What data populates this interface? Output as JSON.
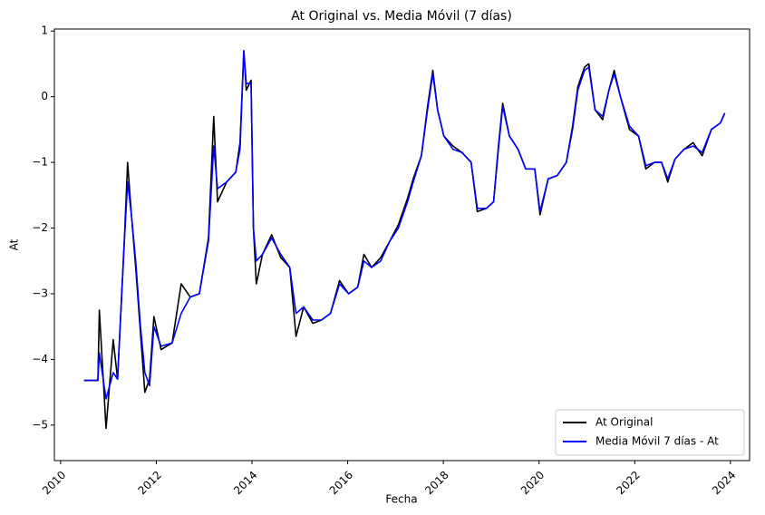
{
  "chart_data": {
    "type": "line",
    "title": "At Original vs. Media Móvil (7 días)",
    "xlabel": "Fecha",
    "ylabel": "At",
    "x": [
      2010.49,
      2010.78,
      2010.81,
      2010.95,
      2011.1,
      2011.19,
      2011.34,
      2011.4,
      2011.48,
      2011.57,
      2011.67,
      2011.76,
      2011.86,
      2011.95,
      2012.1,
      2012.33,
      2012.52,
      2012.71,
      2012.9,
      2013.09,
      2013.2,
      2013.28,
      2013.47,
      2013.66,
      2013.75,
      2013.83,
      2013.88,
      2013.98,
      2014.03,
      2014.09,
      2014.22,
      2014.41,
      2014.6,
      2014.79,
      2014.92,
      2015.08,
      2015.27,
      2015.45,
      2015.64,
      2015.83,
      2016.02,
      2016.21,
      2016.34,
      2016.5,
      2016.69,
      2016.88,
      2017.06,
      2017.25,
      2017.37,
      2017.54,
      2017.67,
      2017.78,
      2017.88,
      2018.01,
      2018.2,
      2018.39,
      2018.58,
      2018.71,
      2018.9,
      2019.05,
      2019.15,
      2019.24,
      2019.38,
      2019.56,
      2019.72,
      2019.91,
      2020.02,
      2020.19,
      2020.38,
      2020.57,
      2020.7,
      2020.81,
      2020.95,
      2021.04,
      2021.17,
      2021.33,
      2021.46,
      2021.57,
      2021.7,
      2021.89,
      2022.08,
      2022.23,
      2022.41,
      2022.56,
      2022.69,
      2022.84,
      2023.03,
      2023.22,
      2023.41,
      2023.6,
      2023.79,
      2023.88
    ],
    "series": [
      {
        "name": "At Original",
        "color": "#000000",
        "values": [
          -4.32,
          -4.32,
          -3.25,
          -5.05,
          -3.7,
          -4.3,
          -2.05,
          -1.0,
          -1.8,
          -2.6,
          -3.6,
          -4.5,
          -4.3,
          -3.35,
          -3.85,
          -3.75,
          -2.85,
          -3.05,
          -3.0,
          -2.15,
          -0.3,
          -1.6,
          -1.3,
          -1.15,
          -0.7,
          0.7,
          0.1,
          0.25,
          -2.0,
          -2.85,
          -2.4,
          -2.1,
          -2.45,
          -2.6,
          -3.65,
          -3.2,
          -3.45,
          -3.4,
          -3.3,
          -2.8,
          -3.0,
          -2.9,
          -2.4,
          -2.6,
          -2.45,
          -2.2,
          -1.95,
          -1.55,
          -1.25,
          -0.9,
          -0.15,
          0.4,
          -0.2,
          -0.6,
          -0.75,
          -0.85,
          -1.0,
          -1.75,
          -1.7,
          -1.6,
          -0.75,
          -0.1,
          -0.6,
          -0.8,
          -1.1,
          -1.1,
          -1.8,
          -1.25,
          -1.2,
          -1.0,
          -0.45,
          0.15,
          0.45,
          0.5,
          -0.2,
          -0.35,
          0.1,
          0.4,
          0.0,
          -0.5,
          -0.6,
          -1.1,
          -1.0,
          -1.0,
          -1.3,
          -0.95,
          -0.8,
          -0.7,
          -0.9,
          -0.5,
          -0.4,
          -0.25
        ]
      },
      {
        "name": "Media Móvil 7 días - At",
        "color": "#0000ff",
        "values": [
          -4.32,
          -4.32,
          -3.9,
          -4.6,
          -4.2,
          -4.3,
          -2.1,
          -1.3,
          -1.8,
          -2.5,
          -3.5,
          -4.2,
          -4.4,
          -3.5,
          -3.8,
          -3.75,
          -3.3,
          -3.05,
          -3.0,
          -2.2,
          -0.75,
          -1.4,
          -1.3,
          -1.15,
          -0.8,
          0.7,
          0.2,
          0.2,
          -2.0,
          -2.5,
          -2.4,
          -2.15,
          -2.4,
          -2.6,
          -3.3,
          -3.2,
          -3.4,
          -3.4,
          -3.3,
          -2.85,
          -3.0,
          -2.9,
          -2.5,
          -2.6,
          -2.5,
          -2.2,
          -2.0,
          -1.6,
          -1.3,
          -0.9,
          -0.2,
          0.35,
          -0.2,
          -0.6,
          -0.8,
          -0.85,
          -1.0,
          -1.7,
          -1.7,
          -1.6,
          -0.8,
          -0.15,
          -0.6,
          -0.8,
          -1.1,
          -1.1,
          -1.75,
          -1.25,
          -1.2,
          -1.0,
          -0.5,
          0.1,
          0.4,
          0.45,
          -0.2,
          -0.3,
          0.1,
          0.35,
          0.0,
          -0.45,
          -0.6,
          -1.05,
          -1.0,
          -1.0,
          -1.25,
          -0.95,
          -0.8,
          -0.75,
          -0.85,
          -0.5,
          -0.4,
          -0.25
        ]
      }
    ],
    "xlim": [
      2009.87,
      2024.4
    ],
    "xticks": [
      2010,
      2012,
      2014,
      2016,
      2018,
      2020,
      2022,
      2024
    ],
    "ylim": [
      -5.54,
      1.03
    ],
    "yticks": [
      {
        "value": -5,
        "label": "−5"
      },
      {
        "value": -4,
        "label": "−4"
      },
      {
        "value": -3,
        "label": "−3"
      },
      {
        "value": -2,
        "label": "−2"
      },
      {
        "value": -1,
        "label": "−1"
      },
      0,
      1
    ],
    "legend": "lower right",
    "grid": false
  }
}
